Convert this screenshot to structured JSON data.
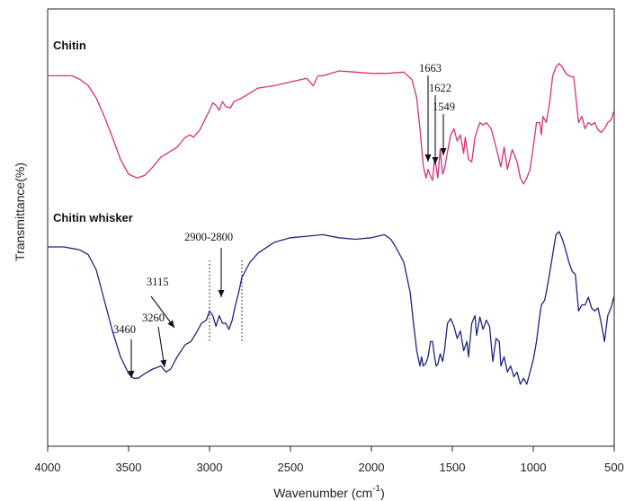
{
  "chart_data": {
    "type": "line",
    "xlabel": "Wavenumber (cm",
    "xlabel_sup": "-1",
    "xlabel_close": ")",
    "ylabel": "Transmittance(%)",
    "xlim": [
      4000,
      500
    ],
    "x_reversed": true,
    "xticks": [
      4000,
      3500,
      3000,
      2500,
      2000,
      1500,
      1000,
      500
    ],
    "xtick_labels": [
      "4000",
      "3500",
      "3000",
      "2500",
      "2000",
      "1500",
      "1000",
      "500"
    ],
    "y_ticks_shown": false,
    "grid": false,
    "series": [
      {
        "name": "Chitin",
        "color": "#d6327a",
        "points": [
          [
            4000,
            0.12
          ],
          [
            3850,
            0.12
          ],
          [
            3800,
            0.15
          ],
          [
            3750,
            0.2
          ],
          [
            3700,
            0.3
          ],
          [
            3650,
            0.45
          ],
          [
            3600,
            0.62
          ],
          [
            3550,
            0.8
          ],
          [
            3500,
            0.92
          ],
          [
            3450,
            0.95
          ],
          [
            3400,
            0.93
          ],
          [
            3350,
            0.86
          ],
          [
            3300,
            0.78
          ],
          [
            3250,
            0.74
          ],
          [
            3200,
            0.7
          ],
          [
            3150,
            0.62
          ],
          [
            3120,
            0.6
          ],
          [
            3100,
            0.62
          ],
          [
            3060,
            0.56
          ],
          [
            3030,
            0.48
          ],
          [
            3000,
            0.4
          ],
          [
            2980,
            0.34
          ],
          [
            2960,
            0.36
          ],
          [
            2940,
            0.4
          ],
          [
            2920,
            0.33
          ],
          [
            2900,
            0.37
          ],
          [
            2870,
            0.38
          ],
          [
            2850,
            0.33
          ],
          [
            2800,
            0.3
          ],
          [
            2750,
            0.26
          ],
          [
            2700,
            0.22
          ],
          [
            2600,
            0.2
          ],
          [
            2500,
            0.17
          ],
          [
            2400,
            0.14
          ],
          [
            2360,
            0.2
          ],
          [
            2330,
            0.12
          ],
          [
            2300,
            0.12
          ],
          [
            2250,
            0.1
          ],
          [
            2200,
            0.08
          ],
          [
            2100,
            0.09
          ],
          [
            2000,
            0.1
          ],
          [
            1900,
            0.1
          ],
          [
            1800,
            0.09
          ],
          [
            1750,
            0.15
          ],
          [
            1720,
            0.3
          ],
          [
            1700,
            0.55
          ],
          [
            1680,
            0.85
          ],
          [
            1663,
            0.95
          ],
          [
            1650,
            0.88
          ],
          [
            1640,
            0.92
          ],
          [
            1622,
            0.97
          ],
          [
            1610,
            0.8
          ],
          [
            1600,
            0.86
          ],
          [
            1590,
            0.95
          ],
          [
            1575,
            0.72
          ],
          [
            1560,
            0.92
          ],
          [
            1549,
            0.88
          ],
          [
            1530,
            0.74
          ],
          [
            1510,
            0.6
          ],
          [
            1490,
            0.55
          ],
          [
            1470,
            0.65
          ],
          [
            1450,
            0.6
          ],
          [
            1430,
            0.75
          ],
          [
            1420,
            0.62
          ],
          [
            1400,
            0.8
          ],
          [
            1380,
            0.82
          ],
          [
            1360,
            0.62
          ],
          [
            1330,
            0.5
          ],
          [
            1310,
            0.52
          ],
          [
            1290,
            0.5
          ],
          [
            1260,
            0.55
          ],
          [
            1230,
            0.7
          ],
          [
            1200,
            0.86
          ],
          [
            1180,
            0.7
          ],
          [
            1160,
            0.88
          ],
          [
            1130,
            0.72
          ],
          [
            1100,
            0.82
          ],
          [
            1080,
            0.95
          ],
          [
            1060,
            1.0
          ],
          [
            1040,
            0.95
          ],
          [
            1020,
            0.88
          ],
          [
            1000,
            0.7
          ],
          [
            980,
            0.5
          ],
          [
            960,
            0.5
          ],
          [
            950,
            0.6
          ],
          [
            940,
            0.45
          ],
          [
            920,
            0.5
          ],
          [
            900,
            0.35
          ],
          [
            880,
            0.12
          ],
          [
            860,
            0.05
          ],
          [
            840,
            0.02
          ],
          [
            820,
            0.05
          ],
          [
            800,
            0.1
          ],
          [
            780,
            0.12
          ],
          [
            750,
            0.13
          ],
          [
            720,
            0.5
          ],
          [
            700,
            0.45
          ],
          [
            680,
            0.55
          ],
          [
            660,
            0.5
          ],
          [
            640,
            0.52
          ],
          [
            620,
            0.5
          ],
          [
            600,
            0.56
          ],
          [
            580,
            0.58
          ],
          [
            560,
            0.55
          ],
          [
            540,
            0.5
          ],
          [
            520,
            0.48
          ],
          [
            500,
            0.4
          ]
        ]
      },
      {
        "name": "Chitin whisker",
        "color": "#1f2680",
        "points": [
          [
            4000,
            0.1
          ],
          [
            3900,
            0.1
          ],
          [
            3850,
            0.11
          ],
          [
            3800,
            0.12
          ],
          [
            3750,
            0.15
          ],
          [
            3700,
            0.25
          ],
          [
            3650,
            0.45
          ],
          [
            3600,
            0.65
          ],
          [
            3550,
            0.82
          ],
          [
            3500,
            0.93
          ],
          [
            3470,
            0.96
          ],
          [
            3440,
            0.96
          ],
          [
            3400,
            0.93
          ],
          [
            3350,
            0.9
          ],
          [
            3300,
            0.88
          ],
          [
            3270,
            0.92
          ],
          [
            3240,
            0.9
          ],
          [
            3200,
            0.82
          ],
          [
            3150,
            0.74
          ],
          [
            3115,
            0.72
          ],
          [
            3080,
            0.66
          ],
          [
            3050,
            0.6
          ],
          [
            3020,
            0.58
          ],
          [
            3000,
            0.52
          ],
          [
            2980,
            0.55
          ],
          [
            2960,
            0.62
          ],
          [
            2940,
            0.55
          ],
          [
            2920,
            0.6
          ],
          [
            2900,
            0.6
          ],
          [
            2880,
            0.64
          ],
          [
            2860,
            0.58
          ],
          [
            2840,
            0.48
          ],
          [
            2820,
            0.4
          ],
          [
            2800,
            0.3
          ],
          [
            2750,
            0.2
          ],
          [
            2700,
            0.14
          ],
          [
            2600,
            0.07
          ],
          [
            2500,
            0.04
          ],
          [
            2400,
            0.03
          ],
          [
            2300,
            0.02
          ],
          [
            2200,
            0.04
          ],
          [
            2100,
            0.05
          ],
          [
            2000,
            0.04
          ],
          [
            1920,
            0.02
          ],
          [
            1880,
            0.05
          ],
          [
            1850,
            0.1
          ],
          [
            1800,
            0.2
          ],
          [
            1760,
            0.4
          ],
          [
            1740,
            0.6
          ],
          [
            1720,
            0.78
          ],
          [
            1700,
            0.88
          ],
          [
            1690,
            0.82
          ],
          [
            1680,
            0.88
          ],
          [
            1663,
            0.86
          ],
          [
            1650,
            0.82
          ],
          [
            1635,
            0.72
          ],
          [
            1622,
            0.72
          ],
          [
            1610,
            0.82
          ],
          [
            1600,
            0.88
          ],
          [
            1590,
            0.87
          ],
          [
            1575,
            0.8
          ],
          [
            1560,
            0.85
          ],
          [
            1549,
            0.78
          ],
          [
            1530,
            0.6
          ],
          [
            1510,
            0.57
          ],
          [
            1490,
            0.62
          ],
          [
            1470,
            0.7
          ],
          [
            1450,
            0.65
          ],
          [
            1430,
            0.78
          ],
          [
            1410,
            0.72
          ],
          [
            1400,
            0.82
          ],
          [
            1380,
            0.6
          ],
          [
            1360,
            0.55
          ],
          [
            1350,
            0.68
          ],
          [
            1330,
            0.56
          ],
          [
            1310,
            0.64
          ],
          [
            1290,
            0.58
          ],
          [
            1270,
            0.62
          ],
          [
            1250,
            0.85
          ],
          [
            1230,
            0.7
          ],
          [
            1210,
            0.72
          ],
          [
            1200,
            0.88
          ],
          [
            1180,
            0.82
          ],
          [
            1160,
            0.92
          ],
          [
            1140,
            0.88
          ],
          [
            1120,
            0.95
          ],
          [
            1100,
            0.92
          ],
          [
            1080,
            1.0
          ],
          [
            1060,
            0.96
          ],
          [
            1040,
            1.0
          ],
          [
            1020,
            0.92
          ],
          [
            1000,
            0.84
          ],
          [
            980,
            0.72
          ],
          [
            960,
            0.55
          ],
          [
            950,
            0.48
          ],
          [
            930,
            0.45
          ],
          [
            920,
            0.4
          ],
          [
            900,
            0.28
          ],
          [
            880,
            0.15
          ],
          [
            860,
            0.02
          ],
          [
            840,
            0.0
          ],
          [
            820,
            0.05
          ],
          [
            800,
            0.12
          ],
          [
            780,
            0.2
          ],
          [
            760,
            0.26
          ],
          [
            740,
            0.28
          ],
          [
            720,
            0.52
          ],
          [
            700,
            0.48
          ],
          [
            680,
            0.48
          ],
          [
            660,
            0.43
          ],
          [
            640,
            0.5
          ],
          [
            620,
            0.52
          ],
          [
            600,
            0.5
          ],
          [
            580,
            0.6
          ],
          [
            560,
            0.72
          ],
          [
            540,
            0.55
          ],
          [
            520,
            0.5
          ],
          [
            500,
            0.42
          ]
        ]
      }
    ],
    "annotations": [
      {
        "text": "1663",
        "series": 0,
        "target_x": 1663
      },
      {
        "text": "1622",
        "series": 0,
        "target_x": 1622
      },
      {
        "text": "1549",
        "series": 0,
        "target_x": 1549
      },
      {
        "text": "2900-2800",
        "series": 1,
        "target_x": 2900
      },
      {
        "text": "3115",
        "series": 1,
        "target_x": 3115
      },
      {
        "text": "3260",
        "series": 1,
        "target_x": 3260
      },
      {
        "text": "3460",
        "series": 1,
        "target_x": 3460
      }
    ]
  }
}
